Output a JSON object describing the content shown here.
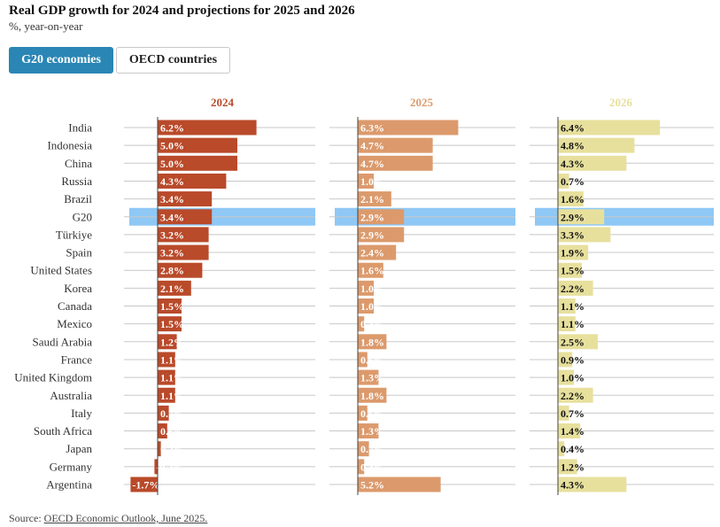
{
  "header": {
    "title": "Real GDP growth for 2024 and projections for 2025 and 2026",
    "subtitle": "%, year-on-year"
  },
  "tabs": [
    {
      "label": "G20 economies",
      "active": true
    },
    {
      "label": "OECD countries",
      "active": false
    }
  ],
  "footer": {
    "source_prefix": "Source: ",
    "source_link": "OECD Economic Outlook, June 2025."
  },
  "chart_data": {
    "type": "bar",
    "orientation": "horizontal",
    "categories": [
      "India",
      "Indonesia",
      "China",
      "Russia",
      "Brazil",
      "G20",
      "Türkiye",
      "Spain",
      "United States",
      "Korea",
      "Canada",
      "Mexico",
      "Saudi Arabia",
      "France",
      "United Kingdom",
      "Australia",
      "Italy",
      "South Africa",
      "Japan",
      "Germany",
      "Argentina"
    ],
    "highlight": "G20",
    "highlight_color": "#8fc8f5",
    "series": [
      {
        "name": "2024",
        "color": "#b94a2a",
        "values": [
          6.2,
          5.0,
          5.0,
          4.3,
          3.4,
          3.4,
          3.2,
          3.2,
          2.8,
          2.1,
          1.5,
          1.5,
          1.2,
          1.1,
          1.1,
          1.1,
          0.7,
          0.6,
          0.2,
          -0.2,
          -1.7
        ]
      },
      {
        "name": "2025",
        "color": "#dc9a6c",
        "values": [
          6.3,
          4.7,
          4.7,
          1.0,
          2.1,
          2.9,
          2.9,
          2.4,
          1.6,
          1.0,
          1.0,
          0.4,
          1.8,
          0.6,
          1.3,
          1.8,
          0.6,
          1.3,
          0.7,
          0.4,
          5.2
        ]
      },
      {
        "name": "2026",
        "color": "#e7e09d",
        "values": [
          6.4,
          4.8,
          4.3,
          0.7,
          1.6,
          2.9,
          3.3,
          1.9,
          1.5,
          2.2,
          1.1,
          1.1,
          2.5,
          0.9,
          1.0,
          2.2,
          0.7,
          1.4,
          0.4,
          1.2,
          4.3
        ]
      }
    ],
    "value_suffix": "%",
    "grid": true
  }
}
